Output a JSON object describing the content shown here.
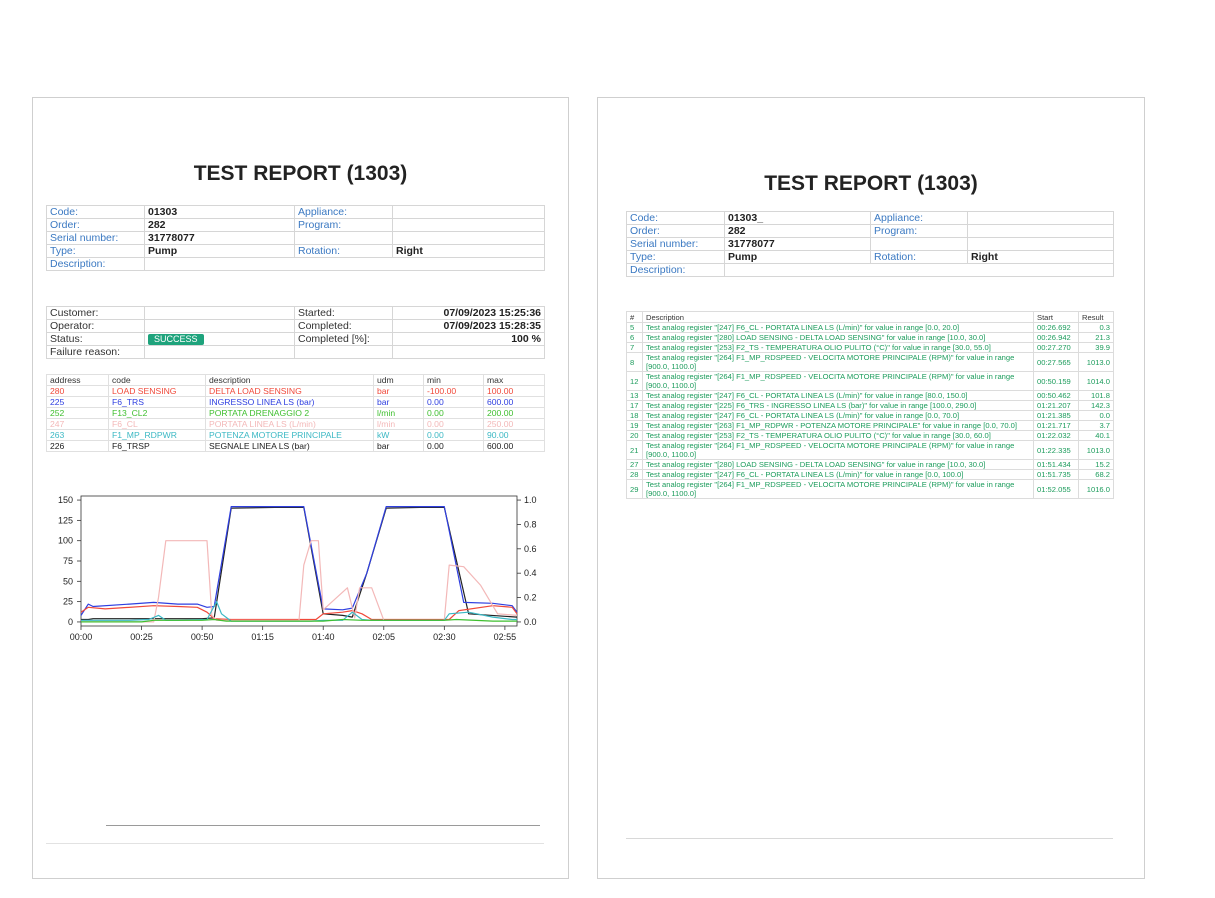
{
  "report_title": "TEST REPORT (1303)",
  "info": {
    "code_label": "Code:",
    "code_value": "01303",
    "code_value_p2": "01303_",
    "appliance_label": "Appliance:",
    "order_label": "Order:",
    "order_value": "282",
    "program_label": "Program:",
    "serial_label": "Serial number:",
    "serial_value": "31778077",
    "type_label": "Type:",
    "type_value": "Pump",
    "rotation_label": "Rotation:",
    "rotation_value": "Right",
    "description_label": "Description:"
  },
  "status": {
    "customer_label": "Customer:",
    "started_label": "Started:",
    "started_value": "07/09/2023 15:25:36",
    "operator_label": "Operator:",
    "completed_label": "Completed:",
    "completed_value": "07/09/2023 15:28:35",
    "status_label": "Status:",
    "status_value": "SUCCESS",
    "completed_pct_label": "Completed [%]:",
    "completed_pct_value": "100 %",
    "failure_label": "Failure reason:"
  },
  "registers": {
    "headers": [
      "address",
      "code",
      "description",
      "udm",
      "min",
      "max"
    ],
    "rows": [
      {
        "address": "280",
        "code": "LOAD SENSING",
        "description": "DELTA LOAD SENSING",
        "udm": "bar",
        "min": "-100.00",
        "max": "100.00",
        "color": "#f0493a"
      },
      {
        "address": "225",
        "code": "F6_TRS",
        "description": "INGRESSO LINEA LS (bar)",
        "udm": "bar",
        "min": "0.00",
        "max": "600.00",
        "color": "#2f3fe0"
      },
      {
        "address": "252",
        "code": "F13_CL2",
        "description": "PORTATA DRENAGGIO 2",
        "udm": "l/min",
        "min": "0.00",
        "max": "200.00",
        "color": "#3fbf2f"
      },
      {
        "address": "247",
        "code": "F6_CL",
        "description": "PORTATA LINEA LS (L/min)",
        "udm": "l/min",
        "min": "0.00",
        "max": "250.00",
        "color": "#f3b8b8"
      },
      {
        "address": "263",
        "code": "F1_MP_RDPWR",
        "description": "POTENZA MOTORE PRINCIPALE",
        "udm": "kW",
        "min": "0.00",
        "max": "90.00",
        "color": "#3bb8c4"
      },
      {
        "address": "226",
        "code": "F6_TRSP",
        "description": "SEGNALE LINEA LS (bar)",
        "udm": "bar",
        "min": "0.00",
        "max": "600.00",
        "color": "#222222"
      }
    ]
  },
  "chart_data": {
    "type": "line",
    "x_ticks": [
      "00:00",
      "00:25",
      "00:50",
      "01:15",
      "01:40",
      "02:05",
      "02:30",
      "02:55"
    ],
    "y_left_ticks": [
      "0",
      "25",
      "50",
      "75",
      "100",
      "125",
      "150"
    ],
    "y_right_ticks": [
      "0.0",
      "0.2",
      "0.4",
      "0.6",
      "0.8",
      "1.0"
    ],
    "xlim_seconds": [
      0,
      180
    ],
    "ylim_left": [
      -5,
      155
    ],
    "series": [
      {
        "color": "#222222",
        "points": [
          [
            0,
            3
          ],
          [
            3,
            3
          ],
          [
            5,
            4
          ],
          [
            25,
            4
          ],
          [
            50,
            4
          ],
          [
            55,
            5
          ],
          [
            62,
            140
          ],
          [
            80,
            141
          ],
          [
            92,
            141
          ],
          [
            100,
            10
          ],
          [
            108,
            8
          ],
          [
            112,
            6
          ],
          [
            118,
            60
          ],
          [
            126,
            140
          ],
          [
            140,
            141
          ],
          [
            150,
            141
          ],
          [
            160,
            10
          ],
          [
            175,
            7
          ],
          [
            180,
            6
          ]
        ]
      },
      {
        "color": "#2f3fe0",
        "points": [
          [
            0,
            8
          ],
          [
            3,
            22
          ],
          [
            5,
            19
          ],
          [
            20,
            22
          ],
          [
            30,
            24
          ],
          [
            40,
            22
          ],
          [
            48,
            22
          ],
          [
            52,
            18
          ],
          [
            55,
            19
          ],
          [
            62,
            142
          ],
          [
            80,
            142
          ],
          [
            92,
            142
          ],
          [
            100,
            16
          ],
          [
            108,
            15
          ],
          [
            112,
            17
          ],
          [
            118,
            60
          ],
          [
            126,
            142
          ],
          [
            140,
            142
          ],
          [
            150,
            142
          ],
          [
            158,
            24
          ],
          [
            170,
            23
          ],
          [
            178,
            20
          ],
          [
            180,
            12
          ]
        ]
      },
      {
        "color": "#f0493a",
        "points": [
          [
            0,
            12
          ],
          [
            3,
            18
          ],
          [
            10,
            16
          ],
          [
            30,
            20
          ],
          [
            40,
            19
          ],
          [
            48,
            18
          ],
          [
            52,
            12
          ],
          [
            55,
            4
          ],
          [
            62,
            3
          ],
          [
            90,
            3
          ],
          [
            97,
            3
          ],
          [
            100,
            10
          ],
          [
            108,
            12
          ],
          [
            112,
            14
          ],
          [
            116,
            10
          ],
          [
            120,
            3
          ],
          [
            152,
            3
          ],
          [
            156,
            14
          ],
          [
            170,
            20
          ],
          [
            178,
            18
          ],
          [
            180,
            10
          ]
        ]
      },
      {
        "color": "#f3b8b8",
        "points": [
          [
            0,
            0
          ],
          [
            30,
            0
          ],
          [
            32,
            30
          ],
          [
            35,
            100
          ],
          [
            52,
            100
          ],
          [
            54,
            8
          ],
          [
            56,
            2
          ],
          [
            90,
            2
          ],
          [
            92,
            70
          ],
          [
            95,
            100
          ],
          [
            98,
            100
          ],
          [
            100,
            15
          ],
          [
            110,
            42
          ],
          [
            113,
            5
          ],
          [
            115,
            42
          ],
          [
            120,
            42
          ],
          [
            125,
            2
          ],
          [
            150,
            2
          ],
          [
            152,
            70
          ],
          [
            158,
            68
          ],
          [
            165,
            45
          ],
          [
            172,
            10
          ],
          [
            180,
            8
          ]
        ]
      },
      {
        "color": "#3bb8c4",
        "points": [
          [
            0,
            2
          ],
          [
            20,
            2
          ],
          [
            28,
            3
          ],
          [
            32,
            8
          ],
          [
            35,
            2
          ],
          [
            40,
            2
          ],
          [
            52,
            3
          ],
          [
            56,
            25
          ],
          [
            58,
            10
          ],
          [
            62,
            1
          ],
          [
            95,
            1
          ],
          [
            100,
            2
          ],
          [
            108,
            2
          ],
          [
            112,
            12
          ],
          [
            116,
            3
          ],
          [
            120,
            2
          ],
          [
            150,
            2
          ],
          [
            152,
            10
          ],
          [
            160,
            12
          ],
          [
            170,
            6
          ],
          [
            178,
            3
          ],
          [
            180,
            3
          ]
        ]
      },
      {
        "color": "#3fbf2f",
        "points": [
          [
            0,
            0
          ],
          [
            25,
            0
          ],
          [
            30,
            2
          ],
          [
            50,
            2
          ],
          [
            55,
            3
          ],
          [
            60,
            1
          ],
          [
            100,
            1
          ],
          [
            108,
            3
          ],
          [
            116,
            2
          ],
          [
            150,
            2
          ],
          [
            155,
            3
          ],
          [
            170,
            1
          ],
          [
            180,
            1
          ]
        ]
      }
    ]
  },
  "steps": {
    "headers": [
      "#",
      "Description",
      "Start",
      "Result"
    ],
    "rows": [
      {
        "n": "5",
        "desc": "Test analog register \"[247] F6_CL - PORTATA LINEA LS (L/min)\" for value in range [0.0, 20.0]",
        "start": "00:26.692",
        "result": "0.3"
      },
      {
        "n": "6",
        "desc": "Test analog register \"[280] LOAD SENSING - DELTA LOAD SENSING\" for value in range [10.0, 30.0]",
        "start": "00:26.942",
        "result": "21.3"
      },
      {
        "n": "7",
        "desc": "Test analog register \"[253] F2_TS - TEMPERATURA OLIO PULITO (°C)\" for value in range [30.0, 55.0]",
        "start": "00:27.270",
        "result": "39.9"
      },
      {
        "n": "8",
        "desc": "Test analog register \"[264] F1_MP_RDSPEED - VELOCITA MOTORE PRINCIPALE (RPM)\" for value in range [900.0, 1100.0]",
        "start": "00:27.565",
        "result": "1013.0"
      },
      {
        "n": "12",
        "desc": "Test analog register \"[264] F1_MP_RDSPEED - VELOCITA MOTORE PRINCIPALE (RPM)\" for value in range [900.0, 1100.0]",
        "start": "00:50.159",
        "result": "1014.0"
      },
      {
        "n": "13",
        "desc": "Test analog register \"[247] F6_CL - PORTATA LINEA LS (L/min)\" for value in range [80.0, 150.0]",
        "start": "00:50.462",
        "result": "101.8"
      },
      {
        "n": "17",
        "desc": "Test analog register \"[225] F6_TRS - INGRESSO LINEA LS (bar)\" for value in range [100.0, 290.0]",
        "start": "01:21.207",
        "result": "142.3"
      },
      {
        "n": "18",
        "desc": "Test analog register \"[247] F6_CL - PORTATA LINEA LS (L/min)\" for value in range [0.0, 70.0]",
        "start": "01:21.385",
        "result": "0.0"
      },
      {
        "n": "19",
        "desc": "Test analog register \"[263] F1_MP_RDPWR - POTENZA MOTORE PRINCIPALE\" for value in range [0.0, 70.0]",
        "start": "01:21.717",
        "result": "3.7"
      },
      {
        "n": "20",
        "desc": "Test analog register \"[253] F2_TS - TEMPERATURA OLIO PULITO (°C)\" for value in range [30.0, 60.0]",
        "start": "01:22.032",
        "result": "40.1"
      },
      {
        "n": "21",
        "desc": "Test analog register \"[264] F1_MP_RDSPEED - VELOCITA MOTORE PRINCIPALE (RPM)\" for value in range [900.0, 1100.0]",
        "start": "01:22.335",
        "result": "1013.0"
      },
      {
        "n": "27",
        "desc": "Test analog register \"[280] LOAD SENSING - DELTA LOAD SENSING\" for value in range [10.0, 30.0]",
        "start": "01:51.434",
        "result": "15.2"
      },
      {
        "n": "28",
        "desc": "Test analog register \"[247] F6_CL - PORTATA LINEA LS (L/min)\" for value in range [0.0, 100.0]",
        "start": "01:51.735",
        "result": "68.2"
      },
      {
        "n": "29",
        "desc": "Test analog register \"[264] F1_MP_RDSPEED - VELOCITA MOTORE PRINCIPALE (RPM)\" for value in range [900.0, 1100.0]",
        "start": "01:52.055",
        "result": "1016.0"
      }
    ]
  }
}
